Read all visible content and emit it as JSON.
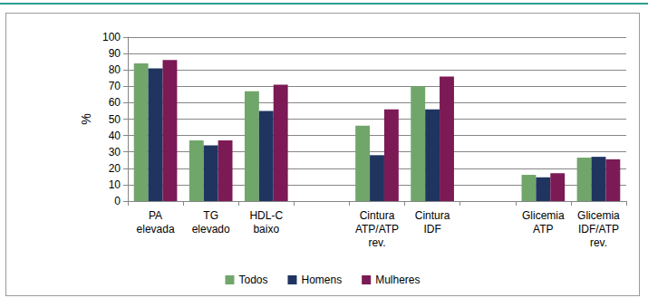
{
  "chart_data": {
    "type": "bar",
    "y_label": "%",
    "categories": [
      "PA\nelevada",
      "TG\nelevado",
      "HDL-C\nbaixo",
      null,
      "Cintura\nATP/ATP\nrev.",
      "Cintura\nIDF",
      null,
      "Glicemia\nATP",
      "Glicemia\nIDF/ATP\nrev."
    ],
    "series": [
      {
        "name": "Todos",
        "color": "#71a66b",
        "values": [
          84,
          37,
          67,
          null,
          46,
          70,
          null,
          16,
          26.5
        ]
      },
      {
        "name": "Homens",
        "color": "#1f3560",
        "values": [
          81,
          34,
          55,
          null,
          28,
          56,
          null,
          14.5,
          27
        ]
      },
      {
        "name": "Mulheres",
        "color": "#7b1a55",
        "values": [
          86,
          37,
          71,
          null,
          56,
          76,
          null,
          17,
          25.5
        ]
      }
    ],
    "ylim": [
      0,
      100
    ],
    "yticks": [
      0,
      10,
      20,
      30,
      40,
      50,
      60,
      70,
      80,
      90,
      100
    ],
    "grid": true,
    "legend": "bottom"
  }
}
